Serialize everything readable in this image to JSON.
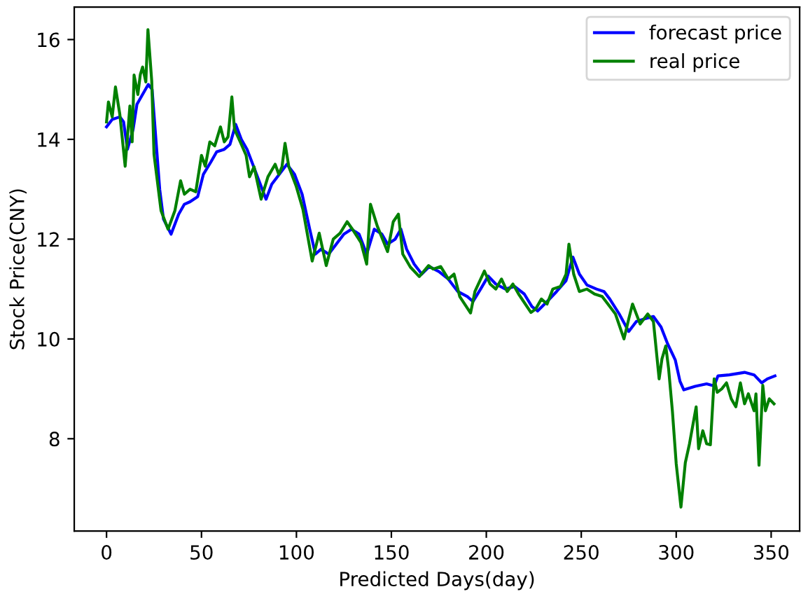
{
  "chart_data": {
    "type": "line",
    "xlabel": "Predicted Days(day)",
    "ylabel": "Stock Price(CNY)",
    "xlim": [
      -17,
      365
    ],
    "xticks": [
      0,
      50,
      100,
      150,
      200,
      250,
      300,
      350
    ],
    "ylim": [
      6.15,
      16.65
    ],
    "yticks": [
      8,
      10,
      12,
      14,
      16
    ],
    "grid": false,
    "legend": "top right",
    "line_style": "solid",
    "marker": "none",
    "series": [
      {
        "name": "forecast price",
        "color": "#0000ff",
        "x": [
          0,
          3,
          7,
          9,
          11,
          14,
          16,
          19,
          22,
          24,
          26,
          28,
          30,
          34,
          38,
          41,
          44,
          48,
          51,
          55,
          58,
          62,
          65,
          68,
          71,
          74,
          77,
          80,
          84,
          87,
          91,
          95,
          99,
          103,
          107,
          110,
          113,
          117,
          121,
          125,
          129,
          133,
          137,
          141,
          145,
          148,
          152,
          155,
          158,
          162,
          166,
          170,
          175,
          180,
          185,
          190,
          193,
          197,
          201,
          205,
          210,
          215,
          220,
          224,
          227,
          232,
          237,
          242,
          245.6,
          249,
          253,
          258,
          262,
          265,
          270,
          275,
          279,
          283,
          288,
          292,
          295.5,
          299.5,
          302,
          304,
          310,
          316,
          320,
          322,
          328,
          336,
          341,
          345,
          348,
          352
        ],
        "values": [
          14.25,
          14.4,
          14.45,
          14.35,
          13.8,
          14.2,
          14.7,
          14.9,
          15.1,
          15.0,
          14.0,
          13.0,
          12.4,
          12.1,
          12.5,
          12.7,
          12.75,
          12.85,
          13.3,
          13.55,
          13.75,
          13.8,
          13.9,
          14.3,
          14.0,
          13.8,
          13.5,
          13.2,
          12.8,
          13.1,
          13.3,
          13.5,
          13.3,
          12.9,
          12.2,
          11.7,
          11.8,
          11.7,
          11.9,
          12.1,
          12.2,
          12.1,
          11.7,
          12.2,
          12.1,
          11.9,
          12.0,
          12.2,
          11.8,
          11.5,
          11.3,
          11.45,
          11.35,
          11.2,
          10.95,
          10.85,
          10.75,
          11.0,
          11.26,
          11.1,
          11.0,
          11.05,
          10.9,
          10.65,
          10.56,
          10.75,
          10.95,
          11.17,
          11.64,
          11.3,
          11.08,
          11.0,
          10.95,
          10.8,
          10.5,
          10.15,
          10.35,
          10.4,
          10.45,
          10.24,
          9.9,
          9.58,
          9.15,
          8.98,
          9.05,
          9.1,
          9.06,
          9.26,
          9.28,
          9.33,
          9.28,
          9.12,
          9.2,
          9.26
        ]
      },
      {
        "name": "real price",
        "color": "#008000",
        "x": [
          0,
          1,
          3,
          4.7,
          7,
          9.8,
          12.3,
          13.5,
          14.5,
          16.5,
          17.8,
          19,
          20.7,
          21.8,
          23.8,
          25,
          28.7,
          32.4,
          36,
          39,
          41,
          44,
          47,
          50,
          52,
          54.4,
          57,
          60,
          62,
          64,
          66,
          67.4,
          70.4,
          73.5,
          75.3,
          77.7,
          81.4,
          85,
          88.8,
          90.7,
          92.4,
          94,
          96,
          99.8,
          103.4,
          108.3,
          112,
          115.7,
          119.4,
          123,
          126.7,
          130,
          134,
          137,
          139,
          142.6,
          148,
          151,
          153.7,
          156,
          160,
          164.7,
          169.6,
          172,
          176,
          180,
          183,
          186,
          191.7,
          194,
          199,
          202,
          205,
          208,
          211,
          214,
          217,
          223.5,
          226,
          229,
          232,
          235,
          239,
          242,
          243.5,
          246,
          249,
          253,
          257,
          261,
          265,
          268,
          272.5,
          275,
          277,
          281,
          285,
          288,
          291,
          292.5,
          294.5,
          296,
          298,
          300,
          302.5,
          304.8,
          307,
          310.5,
          311.8,
          314,
          316,
          318,
          320,
          321.6,
          324,
          326.5,
          329,
          331.4,
          333.8,
          336,
          338,
          341,
          342,
          343.6,
          345.6,
          347,
          349,
          351.5
        ],
        "values": [
          14.35,
          14.75,
          14.45,
          15.05,
          14.5,
          13.46,
          14.67,
          13.95,
          15.29,
          14.9,
          15.3,
          15.45,
          15.15,
          16.2,
          15.17,
          13.7,
          12.57,
          12.2,
          12.57,
          13.17,
          12.9,
          13.0,
          12.95,
          13.68,
          13.46,
          13.95,
          13.87,
          14.25,
          13.95,
          14.05,
          14.85,
          14.2,
          13.95,
          13.68,
          13.25,
          13.45,
          12.8,
          13.25,
          13.5,
          13.3,
          13.45,
          13.92,
          13.45,
          13.07,
          12.6,
          11.56,
          12.12,
          11.47,
          12.0,
          12.12,
          12.35,
          12.17,
          11.93,
          11.5,
          12.7,
          12.26,
          11.75,
          12.35,
          12.5,
          11.7,
          11.44,
          11.25,
          11.47,
          11.4,
          11.45,
          11.2,
          11.3,
          10.85,
          10.52,
          10.95,
          11.36,
          11.1,
          11.0,
          11.2,
          10.95,
          11.1,
          10.9,
          10.53,
          10.6,
          10.8,
          10.7,
          11.0,
          11.05,
          11.3,
          11.9,
          11.3,
          10.95,
          11.0,
          10.9,
          10.85,
          10.65,
          10.5,
          10.0,
          10.4,
          10.7,
          10.3,
          10.5,
          10.35,
          9.2,
          9.6,
          9.86,
          9.4,
          8.55,
          7.5,
          6.63,
          7.52,
          7.9,
          8.64,
          7.8,
          8.16,
          7.9,
          7.88,
          9.2,
          8.93,
          9.0,
          9.12,
          8.8,
          8.64,
          9.12,
          8.7,
          8.9,
          8.56,
          8.9,
          7.47,
          9.07,
          8.56,
          8.8,
          8.7
        ]
      }
    ]
  }
}
